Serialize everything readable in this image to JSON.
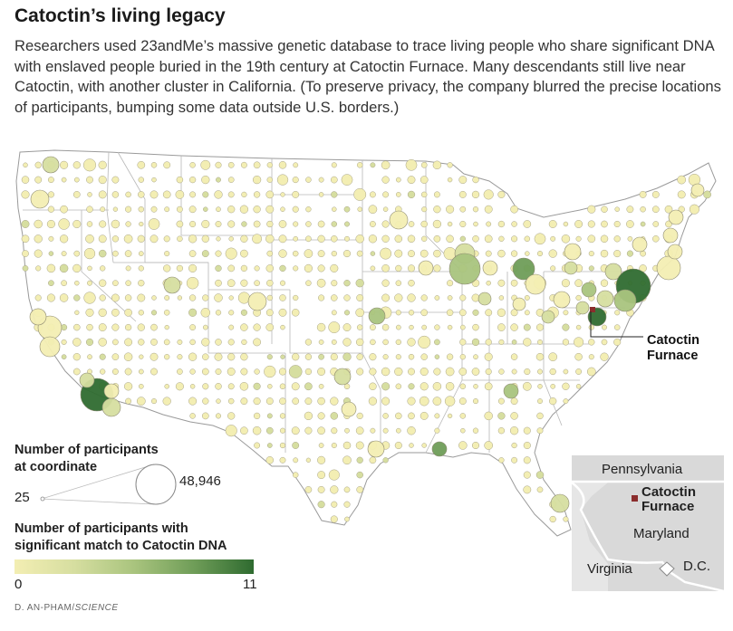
{
  "title": "Catoctin’s living legacy",
  "dek": "Researchers used 23andMe’s massive genetic database to trace living people who share significant DNA with enslaved people buried in the 19th century at Catoctin Furnace. Many descendants still live near Catoctin, with another cluster in California. (To preserve privacy, the company blurred the precise locations of participants, bumping some data outside U.S. borders.)",
  "callout": {
    "line1": "Catoctin",
    "line2": "Furnace"
  },
  "legend": {
    "size_title_line1": "Number of participants",
    "size_title_line2": "at coordinate",
    "size_min": "25",
    "size_max": "48,946",
    "color_title_line1": "Number of participants with",
    "color_title_line2": "significant match to Catoctin DNA",
    "color_min": "0",
    "color_max": "11",
    "color_scale": [
      "#f3eeb3",
      "#d6dea0",
      "#a9c47e",
      "#6f9d58",
      "#2f6b30"
    ]
  },
  "inset": {
    "pennsylvania": "Pennsylvania",
    "catoctin_line1": "Catoctin",
    "catoctin_line2": "Furnace",
    "maryland": "Maryland",
    "virginia": "Virginia",
    "dc": "D.C."
  },
  "credit": {
    "author": "D. AN-PHAM/",
    "outlet": "SCIENCE"
  },
  "colors": {
    "marker": "#8b2d2d",
    "map_fill": "#ffffff",
    "inset_bg": "#d9d9d9"
  }
}
